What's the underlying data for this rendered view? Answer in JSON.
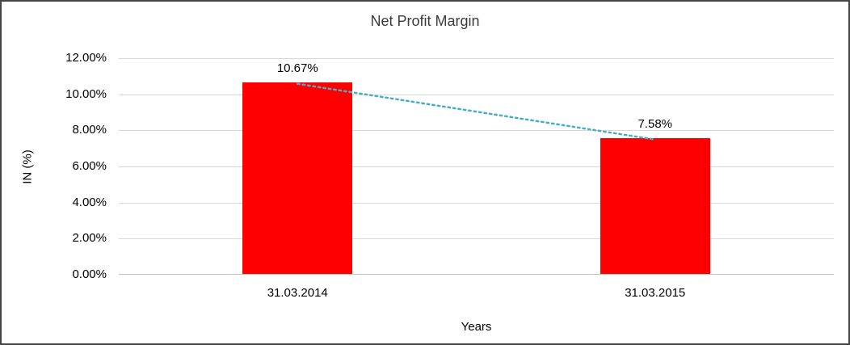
{
  "chart_data": {
    "type": "bar",
    "title": "Net Profit Margin",
    "xlabel": "Years",
    "ylabel": "IN (%)",
    "categories": [
      "31.03.2014",
      "31.03.2015"
    ],
    "values": [
      10.67,
      7.58
    ],
    "data_labels": [
      "10.67%",
      "7.58%"
    ],
    "ylim": [
      0,
      12
    ],
    "ytick_step": 2,
    "ytick_labels": [
      "0.00%",
      "2.00%",
      "4.00%",
      "6.00%",
      "8.00%",
      "10.00%",
      "12.00%"
    ],
    "grid": true,
    "legend": "none",
    "bar_color": "#ff0000",
    "gridline_color": "#d9d9d9",
    "axis_color": "#bfbfbf",
    "trendline_color": "#4bacc6",
    "trendline_style": "dotted"
  }
}
